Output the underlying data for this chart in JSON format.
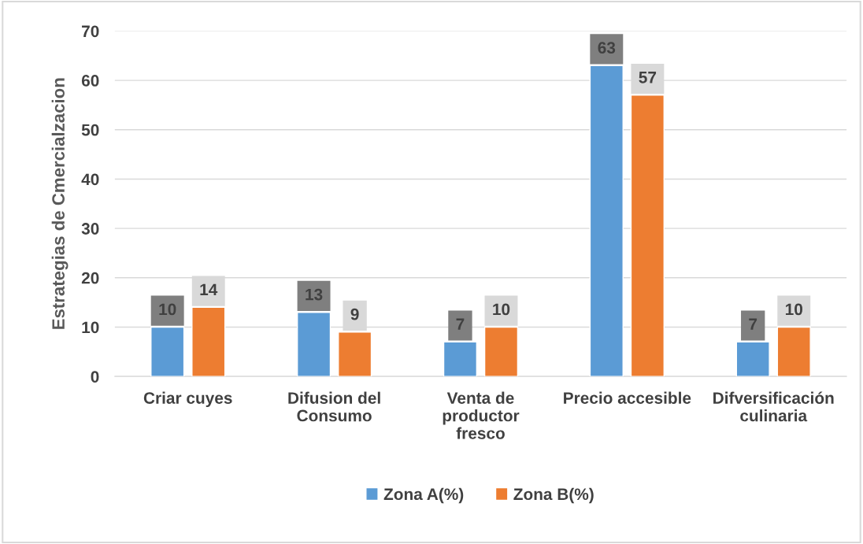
{
  "chart_data": {
    "type": "bar",
    "ylabel": "Estrategias de Cmercialzacion",
    "categories": [
      "Criar cuyes",
      "Difusion del\nConsumo",
      "Venta de\nproductor\nfresco",
      "Precio accesible",
      "Difversificación\nculinaria"
    ],
    "series": [
      {
        "name": "Zona A(%)",
        "color": "#5b9bd5",
        "values": [
          10,
          13,
          7,
          63,
          7
        ]
      },
      {
        "name": "Zona B(%)",
        "color": "#ed7d31",
        "values": [
          14,
          9,
          10,
          57,
          10
        ]
      }
    ],
    "ylim": [
      0,
      70
    ],
    "yticks": [
      0,
      10,
      20,
      30,
      40,
      50,
      60,
      70
    ],
    "grid": "y",
    "legend": "bottom",
    "data_labels": true
  }
}
